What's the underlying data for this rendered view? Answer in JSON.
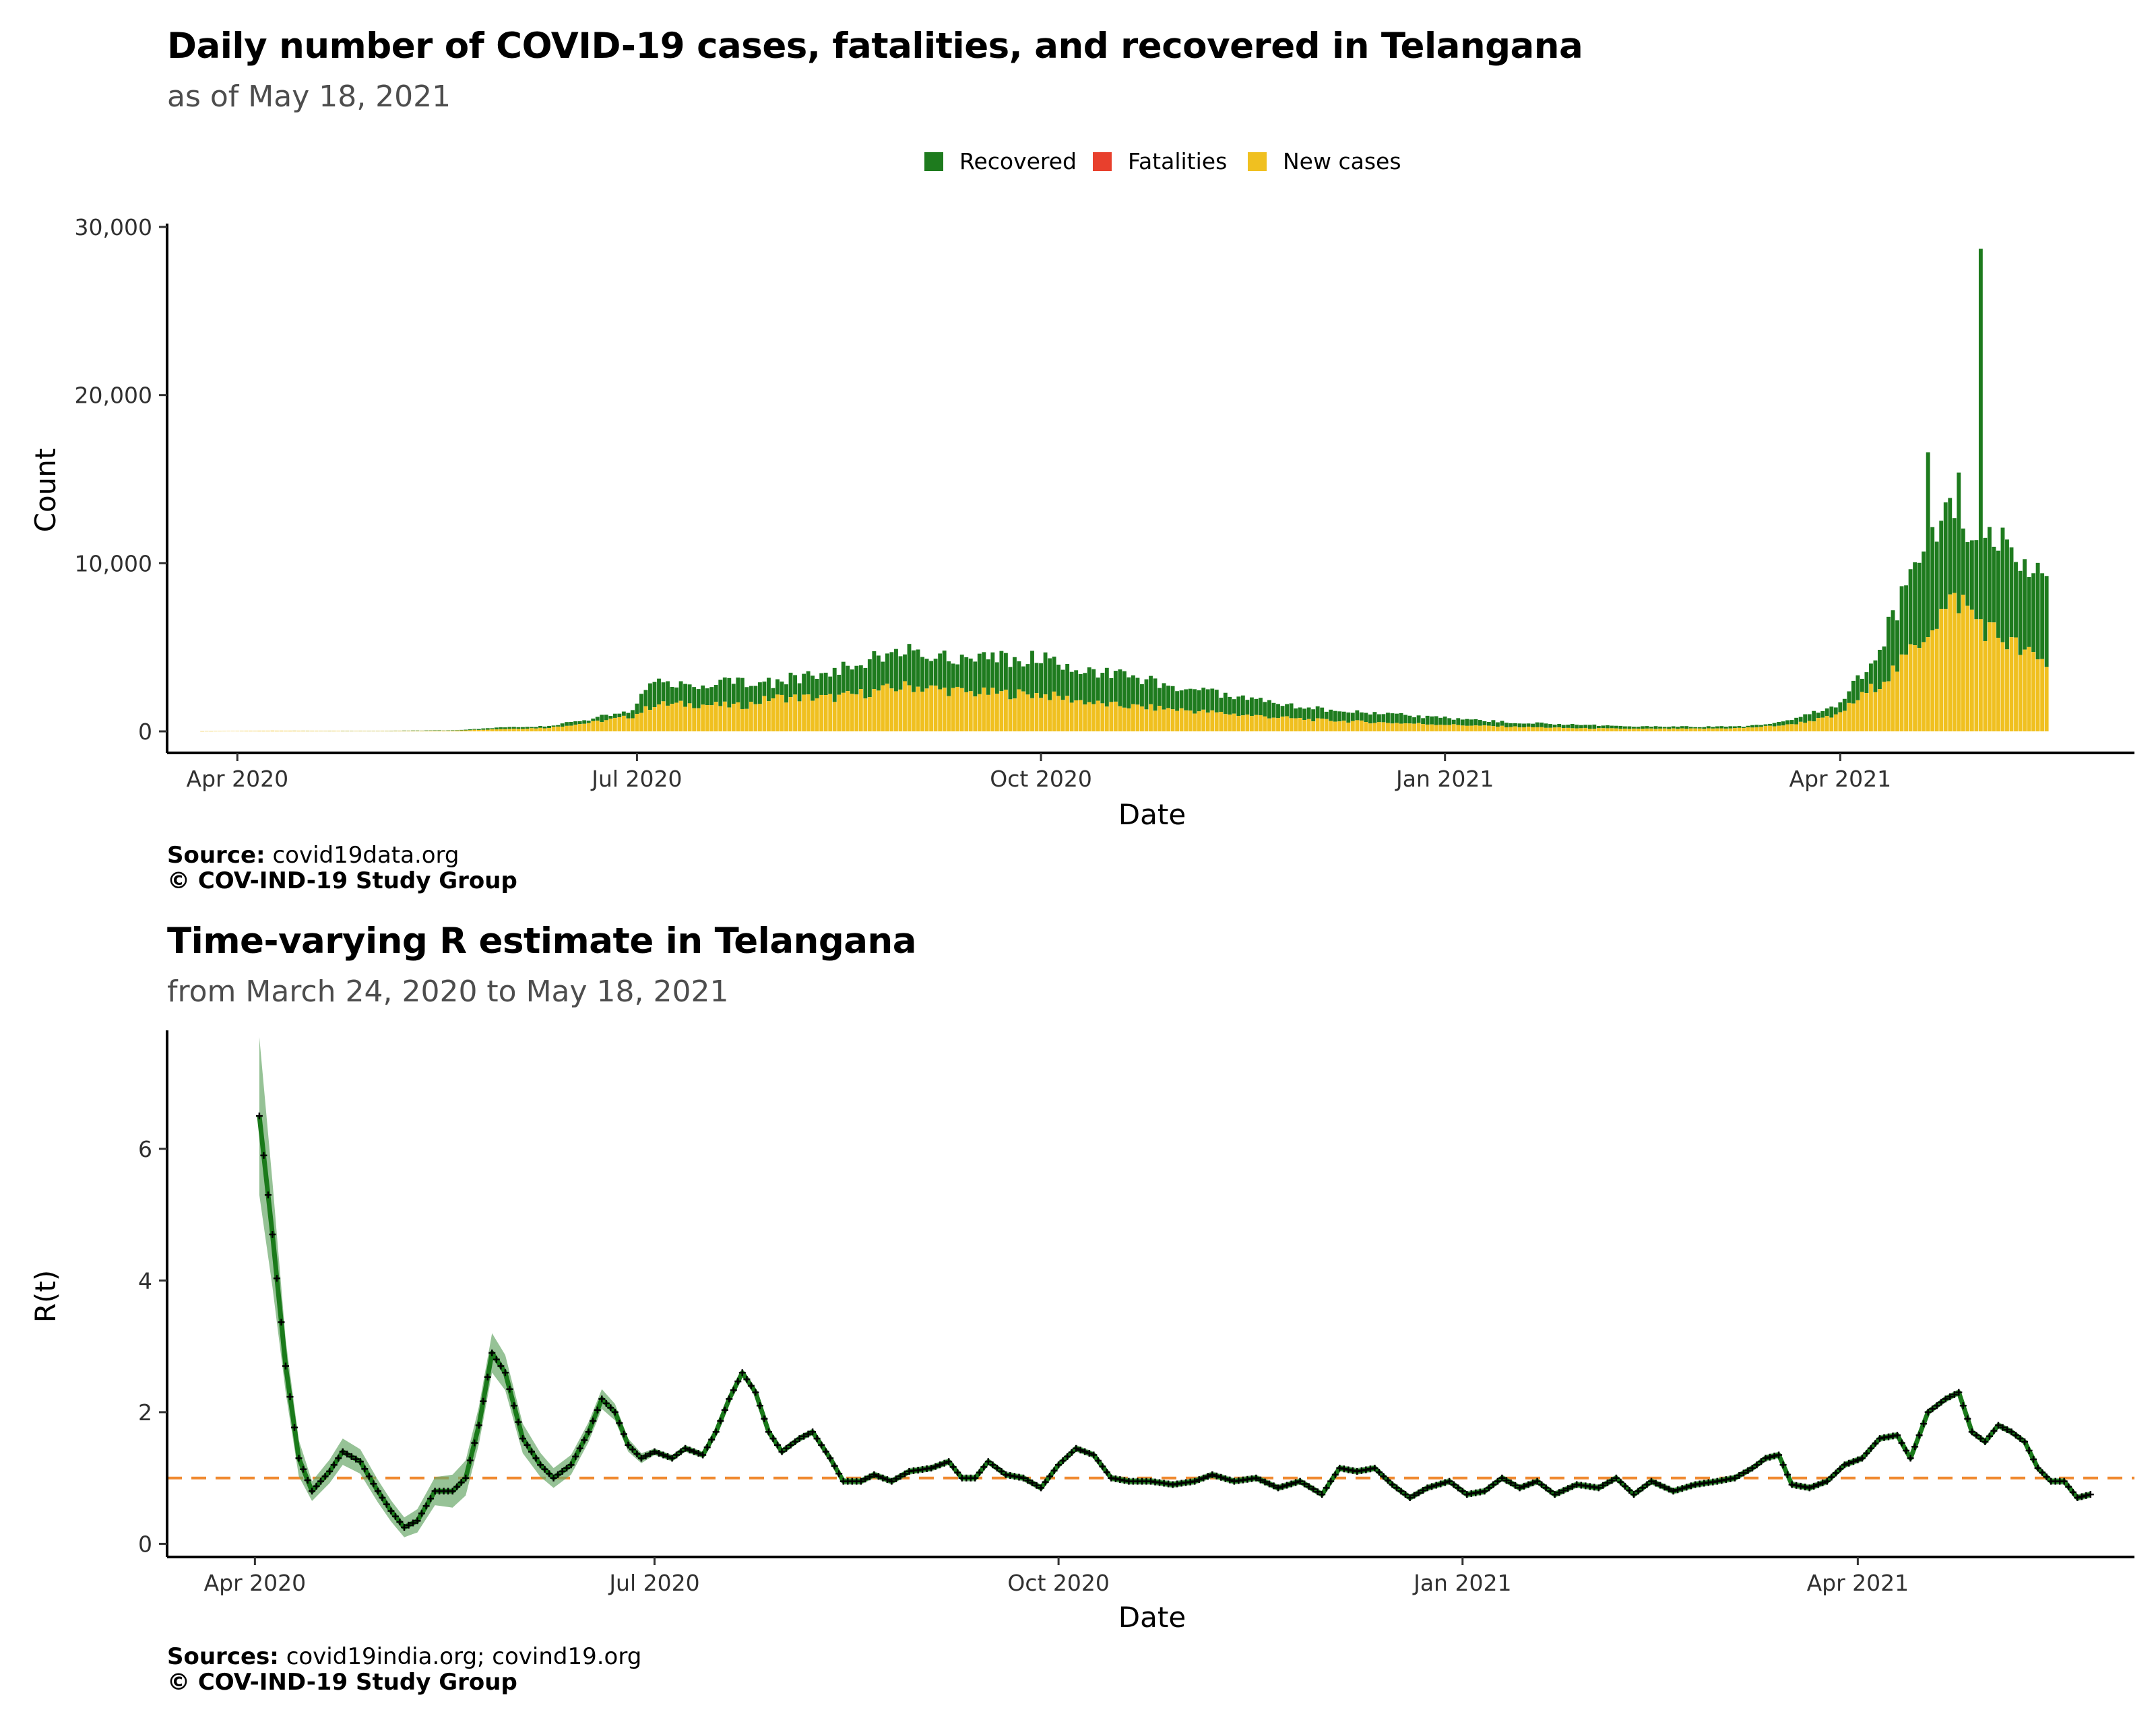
{
  "chart_data": [
    {
      "type": "bar",
      "stacked": true,
      "title": "Daily number of COVID-19 cases, fatalities, and recovered in Telangana",
      "subtitle": "as of May 18, 2021",
      "xlabel": "Date",
      "ylabel": "Count",
      "ylim": [
        0,
        30000
      ],
      "y_ticks": [
        0,
        10000,
        20000,
        30000
      ],
      "y_tick_labels": [
        "0",
        "10,000",
        "20,000",
        "30,000"
      ],
      "x_ticks": [
        "2020-04-01",
        "2020-07-01",
        "2020-10-01",
        "2021-01-01",
        "2021-04-01"
      ],
      "x_tick_labels": [
        "Apr 2020",
        "Jul 2020",
        "Oct 2020",
        "Jan 2021",
        "Apr 2021"
      ],
      "legend": {
        "position": "top",
        "items": [
          {
            "label": "Recovered",
            "color": "#1e7b1e"
          },
          {
            "label": "Fatalities",
            "color": "#e8402d"
          },
          {
            "label": "New cases",
            "color": "#f0c020"
          }
        ]
      },
      "x_start": "2020-03-24",
      "x_end": "2021-05-18",
      "new_cases_keypoints": [
        [
          "2020-03-24",
          10
        ],
        [
          "2020-04-10",
          40
        ],
        [
          "2020-05-01",
          20
        ],
        [
          "2020-05-20",
          40
        ],
        [
          "2020-06-01",
          150
        ],
        [
          "2020-06-10",
          200
        ],
        [
          "2020-06-20",
          500
        ],
        [
          "2020-06-30",
          900
        ],
        [
          "2020-07-05",
          1600
        ],
        [
          "2020-07-15",
          1600
        ],
        [
          "2020-07-25",
          1500
        ],
        [
          "2020-08-01",
          2000
        ],
        [
          "2020-08-15",
          2000
        ],
        [
          "2020-09-01",
          2700
        ],
        [
          "2020-09-15",
          2300
        ],
        [
          "2020-10-01",
          2200
        ],
        [
          "2020-10-15",
          1600
        ],
        [
          "2020-11-01",
          1300
        ],
        [
          "2020-11-15",
          1000
        ],
        [
          "2020-12-01",
          700
        ],
        [
          "2020-12-15",
          550
        ],
        [
          "2021-01-01",
          400
        ],
        [
          "2021-01-15",
          280
        ],
        [
          "2021-02-01",
          180
        ],
        [
          "2021-02-15",
          150
        ],
        [
          "2021-03-01",
          160
        ],
        [
          "2021-03-10",
          200
        ],
        [
          "2021-03-20",
          380
        ],
        [
          "2021-03-31",
          900
        ],
        [
          "2021-04-08",
          2500
        ],
        [
          "2021-04-15",
          4000
        ],
        [
          "2021-04-22",
          6500
        ],
        [
          "2021-04-28",
          7900
        ],
        [
          "2021-05-01",
          7000
        ],
        [
          "2021-05-05",
          6000
        ],
        [
          "2021-05-10",
          5200
        ],
        [
          "2021-05-14",
          4500
        ],
        [
          "2021-05-18",
          4000
        ]
      ],
      "total_keypoints": [
        [
          "2020-03-24",
          10
        ],
        [
          "2020-04-10",
          40
        ],
        [
          "2020-05-01",
          30
        ],
        [
          "2020-05-20",
          60
        ],
        [
          "2020-06-01",
          250
        ],
        [
          "2020-06-10",
          300
        ],
        [
          "2020-06-20",
          700
        ],
        [
          "2020-06-30",
          1300
        ],
        [
          "2020-07-05",
          3200
        ],
        [
          "2020-07-15",
          2700
        ],
        [
          "2020-07-25",
          3000
        ],
        [
          "2020-08-01",
          2900
        ],
        [
          "2020-08-15",
          3700
        ],
        [
          "2020-09-01",
          4800
        ],
        [
          "2020-09-15",
          4400
        ],
        [
          "2020-10-01",
          4300
        ],
        [
          "2020-10-15",
          3500
        ],
        [
          "2020-11-01",
          2700
        ],
        [
          "2020-11-15",
          2000
        ],
        [
          "2020-12-01",
          1400
        ],
        [
          "2020-12-15",
          1100
        ],
        [
          "2021-01-01",
          800
        ],
        [
          "2021-01-15",
          550
        ],
        [
          "2021-02-01",
          380
        ],
        [
          "2021-02-15",
          300
        ],
        [
          "2021-03-01",
          280
        ],
        [
          "2021-03-10",
          300
        ],
        [
          "2021-03-20",
          600
        ],
        [
          "2021-03-31",
          1500
        ],
        [
          "2021-04-08",
          4000
        ],
        [
          "2021-04-15",
          8000
        ],
        [
          "2021-04-22",
          11500
        ],
        [
          "2021-04-28",
          14000
        ],
        [
          "2021-05-01",
          12000
        ],
        [
          "2021-05-05",
          12500
        ],
        [
          "2021-05-10",
          11500
        ],
        [
          "2021-05-14",
          10000
        ],
        [
          "2021-05-18",
          9200
        ]
      ],
      "spikes": [
        {
          "date": "2021-04-21",
          "total": 16600
        },
        {
          "date": "2021-05-03",
          "total": 28700
        }
      ]
    },
    {
      "type": "line",
      "title": "Time-varying R estimate in Telangana",
      "subtitle": "from March 24, 2020 to May 18, 2021",
      "xlabel": "Date",
      "ylabel": "R(t)",
      "ylim": [
        -0.2,
        7.8
      ],
      "y_ticks": [
        0,
        2,
        4,
        6
      ],
      "y_tick_labels": [
        "0",
        "2",
        "4",
        "6"
      ],
      "x_ticks": [
        "2020-04-01",
        "2020-07-01",
        "2020-10-01",
        "2021-01-01",
        "2021-04-01"
      ],
      "x_tick_labels": [
        "Apr 2020",
        "Jul 2020",
        "Oct 2020",
        "Jan 2021",
        "Apr 2021"
      ],
      "reference_line": {
        "y": 1,
        "style": "dashed",
        "color": "#f08a30"
      },
      "line_color": "#1a7a1a",
      "band_color": "#6aa86a",
      "series_keypoints": [
        [
          "2020-04-02",
          6.5
        ],
        [
          "2020-04-05",
          4.7
        ],
        [
          "2020-04-08",
          2.7
        ],
        [
          "2020-04-11",
          1.3
        ],
        [
          "2020-04-14",
          0.8
        ],
        [
          "2020-04-18",
          1.1
        ],
        [
          "2020-04-21",
          1.4
        ],
        [
          "2020-04-25",
          1.25
        ],
        [
          "2020-04-29",
          0.8
        ],
        [
          "2020-05-02",
          0.5
        ],
        [
          "2020-05-05",
          0.25
        ],
        [
          "2020-05-08",
          0.35
        ],
        [
          "2020-05-12",
          0.8
        ],
        [
          "2020-05-16",
          0.8
        ],
        [
          "2020-05-19",
          1.0
        ],
        [
          "2020-05-22",
          1.8
        ],
        [
          "2020-05-25",
          2.9
        ],
        [
          "2020-05-28",
          2.6
        ],
        [
          "2020-06-01",
          1.6
        ],
        [
          "2020-06-05",
          1.2
        ],
        [
          "2020-06-08",
          1.0
        ],
        [
          "2020-06-12",
          1.2
        ],
        [
          "2020-06-16",
          1.7
        ],
        [
          "2020-06-19",
          2.2
        ],
        [
          "2020-06-22",
          2.0
        ],
        [
          "2020-06-25",
          1.5
        ],
        [
          "2020-06-28",
          1.3
        ],
        [
          "2020-07-01",
          1.4
        ],
        [
          "2020-07-05",
          1.3
        ],
        [
          "2020-07-08",
          1.45
        ],
        [
          "2020-07-12",
          1.35
        ],
        [
          "2020-07-15",
          1.7
        ],
        [
          "2020-07-18",
          2.2
        ],
        [
          "2020-07-21",
          2.6
        ],
        [
          "2020-07-24",
          2.3
        ],
        [
          "2020-07-27",
          1.7
        ],
        [
          "2020-07-30",
          1.4
        ],
        [
          "2020-08-03",
          1.6
        ],
        [
          "2020-08-06",
          1.7
        ],
        [
          "2020-08-10",
          1.3
        ],
        [
          "2020-08-13",
          0.95
        ],
        [
          "2020-08-17",
          0.95
        ],
        [
          "2020-08-20",
          1.05
        ],
        [
          "2020-08-24",
          0.95
        ],
        [
          "2020-08-28",
          1.1
        ],
        [
          "2020-09-02",
          1.15
        ],
        [
          "2020-09-06",
          1.25
        ],
        [
          "2020-09-09",
          1.0
        ],
        [
          "2020-09-12",
          1.0
        ],
        [
          "2020-09-15",
          1.25
        ],
        [
          "2020-09-19",
          1.05
        ],
        [
          "2020-09-23",
          1.0
        ],
        [
          "2020-09-27",
          0.85
        ],
        [
          "2020-10-01",
          1.2
        ],
        [
          "2020-10-05",
          1.45
        ],
        [
          "2020-10-09",
          1.35
        ],
        [
          "2020-10-13",
          1.0
        ],
        [
          "2020-10-17",
          0.95
        ],
        [
          "2020-10-22",
          0.95
        ],
        [
          "2020-10-27",
          0.9
        ],
        [
          "2020-11-01",
          0.95
        ],
        [
          "2020-11-05",
          1.05
        ],
        [
          "2020-11-10",
          0.95
        ],
        [
          "2020-11-15",
          1.0
        ],
        [
          "2020-11-20",
          0.85
        ],
        [
          "2020-11-25",
          0.95
        ],
        [
          "2020-11-30",
          0.75
        ],
        [
          "2020-12-04",
          1.15
        ],
        [
          "2020-12-08",
          1.1
        ],
        [
          "2020-12-12",
          1.15
        ],
        [
          "2020-12-16",
          0.9
        ],
        [
          "2020-12-20",
          0.7
        ],
        [
          "2020-12-24",
          0.85
        ],
        [
          "2020-12-29",
          0.95
        ],
        [
          "2021-01-02",
          0.75
        ],
        [
          "2021-01-06",
          0.8
        ],
        [
          "2021-01-10",
          1.0
        ],
        [
          "2021-01-14",
          0.85
        ],
        [
          "2021-01-18",
          0.95
        ],
        [
          "2021-01-22",
          0.75
        ],
        [
          "2021-01-27",
          0.9
        ],
        [
          "2021-02-01",
          0.85
        ],
        [
          "2021-02-05",
          1.0
        ],
        [
          "2021-02-09",
          0.75
        ],
        [
          "2021-02-13",
          0.95
        ],
        [
          "2021-02-18",
          0.8
        ],
        [
          "2021-02-23",
          0.9
        ],
        [
          "2021-02-28",
          0.95
        ],
        [
          "2021-03-04",
          1.0
        ],
        [
          "2021-03-08",
          1.15
        ],
        [
          "2021-03-11",
          1.3
        ],
        [
          "2021-03-14",
          1.35
        ],
        [
          "2021-03-17",
          0.9
        ],
        [
          "2021-03-21",
          0.85
        ],
        [
          "2021-03-25",
          0.95
        ],
        [
          "2021-03-29",
          1.2
        ],
        [
          "2021-04-02",
          1.3
        ],
        [
          "2021-04-06",
          1.6
        ],
        [
          "2021-04-10",
          1.65
        ],
        [
          "2021-04-13",
          1.3
        ],
        [
          "2021-04-17",
          2.0
        ],
        [
          "2021-04-21",
          2.2
        ],
        [
          "2021-04-24",
          2.3
        ],
        [
          "2021-04-27",
          1.7
        ],
        [
          "2021-04-30",
          1.55
        ],
        [
          "2021-05-03",
          1.8
        ],
        [
          "2021-05-06",
          1.7
        ],
        [
          "2021-05-09",
          1.55
        ],
        [
          "2021-05-12",
          1.15
        ],
        [
          "2021-05-15",
          0.95
        ],
        [
          "2021-05-18",
          0.95
        ],
        [
          "2021-05-21",
          0.7
        ],
        [
          "2021-05-24",
          0.75
        ]
      ],
      "band_width_keypoints": [
        [
          "2020-04-02",
          1.2
        ],
        [
          "2020-04-08",
          0.4
        ],
        [
          "2020-04-14",
          0.15
        ],
        [
          "2020-04-21",
          0.2
        ],
        [
          "2020-05-05",
          0.15
        ],
        [
          "2020-05-16",
          0.25
        ],
        [
          "2020-05-25",
          0.3
        ],
        [
          "2020-06-08",
          0.15
        ],
        [
          "2020-06-19",
          0.15
        ],
        [
          "2020-07-01",
          0.05
        ],
        [
          "2021-05-24",
          0.05
        ]
      ]
    }
  ],
  "footer_top": {
    "source_label": "Source:",
    "source_text": "covid19data.org",
    "copyright": "© COV-IND-19 Study Group"
  },
  "footer_bottom": {
    "source_label": "Sources:",
    "source_text": "covid19india.org; covind19.org",
    "copyright": "© COV-IND-19 Study Group"
  }
}
